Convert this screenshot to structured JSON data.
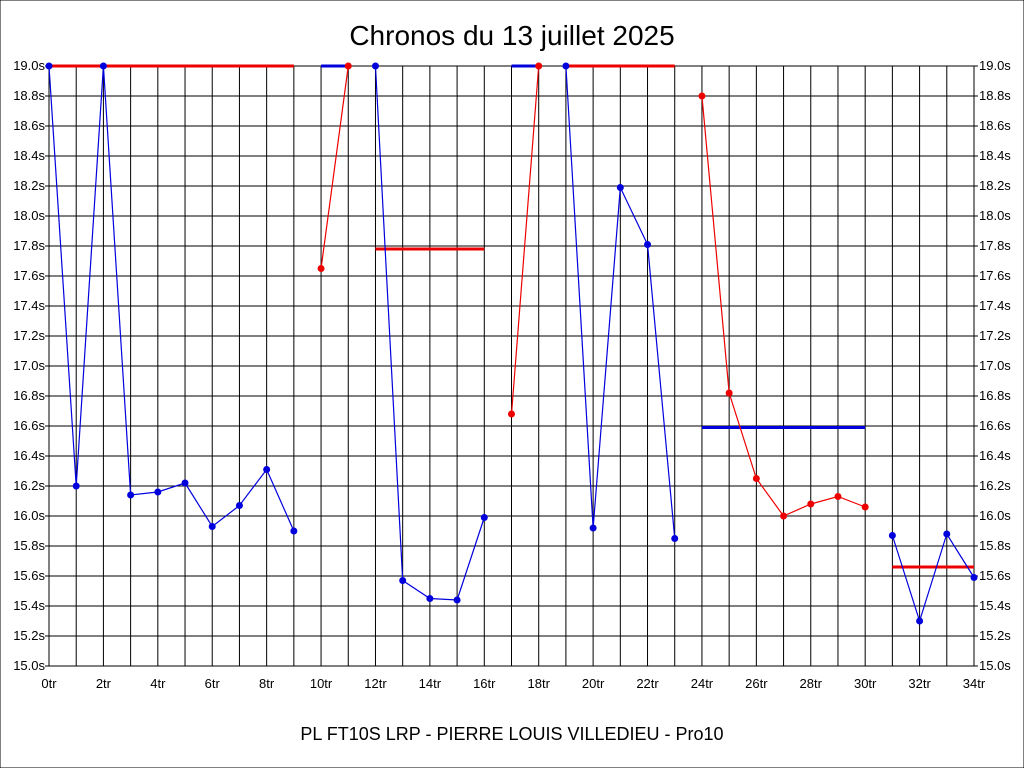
{
  "chart_data": {
    "type": "line",
    "title": "Chronos du 13 juillet 2025",
    "subtitle": "PL FT10S LRP - PIERRE LOUIS VILLEDIEU - Pro10",
    "xlim": [
      0,
      34
    ],
    "ylim": [
      15.0,
      19.0
    ],
    "grid": true,
    "x_tick_labels": [
      "0tr",
      "2tr",
      "4tr",
      "6tr",
      "8tr",
      "10tr",
      "12tr",
      "14tr",
      "16tr",
      "18tr",
      "20tr",
      "22tr",
      "24tr",
      "26tr",
      "28tr",
      "30tr",
      "32tr",
      "34tr"
    ],
    "y_tick_labels": [
      "15.0s",
      "15.2s",
      "15.4s",
      "15.6s",
      "15.8s",
      "16.0s",
      "16.2s",
      "16.4s",
      "16.6s",
      "16.8s",
      "17.0s",
      "17.2s",
      "17.4s",
      "17.6s",
      "17.8s",
      "18.0s",
      "18.2s",
      "18.4s",
      "18.6s",
      "18.8s",
      "19.0s"
    ],
    "series_colors": {
      "blue": "#0000dd",
      "red": "#ee0000"
    },
    "series": [
      {
        "color": "blue",
        "points": [
          [
            0,
            19.0
          ],
          [
            1,
            16.2
          ],
          [
            2,
            19.0
          ],
          [
            3,
            16.14
          ],
          [
            4,
            16.16
          ],
          [
            5,
            16.22
          ],
          [
            6,
            15.93
          ],
          [
            7,
            16.07
          ],
          [
            8,
            16.31
          ],
          [
            9,
            15.9
          ]
        ]
      },
      {
        "color": "red",
        "points": [
          [
            10,
            17.65
          ],
          [
            11,
            19.0
          ]
        ]
      },
      {
        "color": "blue",
        "points": [
          [
            12,
            19.0
          ],
          [
            13,
            15.57
          ],
          [
            14,
            15.45
          ],
          [
            15,
            15.44
          ],
          [
            16,
            15.99
          ]
        ]
      },
      {
        "color": "red",
        "points": [
          [
            17,
            16.68
          ],
          [
            18,
            19.0
          ]
        ]
      },
      {
        "color": "blue",
        "points": [
          [
            19,
            19.0
          ],
          [
            20,
            15.92
          ],
          [
            21,
            18.19
          ],
          [
            22,
            17.81
          ],
          [
            23,
            15.85
          ]
        ]
      },
      {
        "color": "red",
        "points": [
          [
            24,
            18.8
          ],
          [
            25,
            16.82
          ],
          [
            26,
            16.25
          ],
          [
            27,
            16.0
          ],
          [
            28,
            16.08
          ],
          [
            29,
            16.13
          ],
          [
            30,
            16.06
          ]
        ]
      },
      {
        "color": "blue",
        "points": [
          [
            31,
            15.87
          ],
          [
            32,
            15.3
          ],
          [
            33,
            15.88
          ],
          [
            34,
            15.59
          ]
        ]
      }
    ],
    "averages": [
      {
        "color": "red",
        "x": [
          0,
          9
        ],
        "y": 19.0
      },
      {
        "color": "blue",
        "x": [
          10,
          11
        ],
        "y": 19.0
      },
      {
        "color": "red",
        "x": [
          12,
          16
        ],
        "y": 17.78
      },
      {
        "color": "blue",
        "x": [
          17,
          18
        ],
        "y": 19.0
      },
      {
        "color": "red",
        "x": [
          19,
          23
        ],
        "y": 19.0
      },
      {
        "color": "blue",
        "x": [
          24,
          30
        ],
        "y": 16.59
      },
      {
        "color": "red",
        "x": [
          31,
          34
        ],
        "y": 15.66
      }
    ]
  }
}
